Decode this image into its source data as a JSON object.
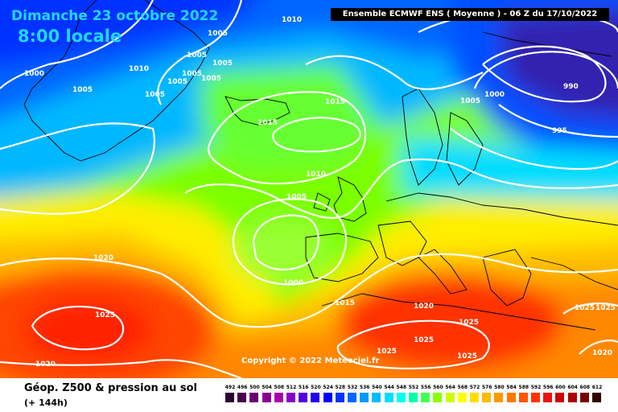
{
  "header": {
    "date": "Dimanche 23 octobre 2022",
    "time": "8:00 locale",
    "info": "Ensemble ECMWF ENS ( Moyenne ) - 06 Z du 17/10/2022"
  },
  "copyright": "Copyright © 2022 Meteociel.fr",
  "footer": {
    "title": "Géop. Z500 & pression au sol",
    "subtitle": "(+ 144h)"
  },
  "scale": {
    "labels": [
      "492",
      "496",
      "500",
      "504",
      "508",
      "512",
      "516",
      "520",
      "524",
      "528",
      "532",
      "536",
      "540",
      "544",
      "548",
      "552",
      "556",
      "560",
      "564",
      "568",
      "572",
      "576",
      "580",
      "584",
      "588",
      "592",
      "596",
      "600",
      "604",
      "608",
      "612"
    ],
    "colors": [
      "#2b0033",
      "#4a004f",
      "#6a0070",
      "#8a0091",
      "#aa00aa",
      "#8800cc",
      "#5500dd",
      "#2200ee",
      "#0000ff",
      "#0033ff",
      "#0066ff",
      "#0099ff",
      "#00bbff",
      "#00ddff",
      "#00ffee",
      "#00ffaa",
      "#44ff55",
      "#88ff00",
      "#ccff00",
      "#ffff00",
      "#ffdd00",
      "#ffbb00",
      "#ff9900",
      "#ff7700",
      "#ff5500",
      "#ff3300",
      "#ee1111",
      "#cc0000",
      "#aa0000",
      "#770000",
      "#330000"
    ]
  },
  "isobar_labels": [
    "1010",
    "1005",
    "1005",
    "1005",
    "1005",
    "1005",
    "1005",
    "1005",
    "1010",
    "1000",
    "1005",
    "1015",
    "1015",
    "1010",
    "1005",
    "1020",
    "1000",
    "1015",
    "1025",
    "1020",
    "1020",
    "1025",
    "1025",
    "1025",
    "1025",
    "1025",
    "1025",
    "1020",
    "1005",
    "1000",
    "990",
    "995"
  ],
  "colors": {
    "date_text": "#22d7ff",
    "isobars": "#ffffff",
    "coastlines": "#000000",
    "info_background": "#000000"
  }
}
